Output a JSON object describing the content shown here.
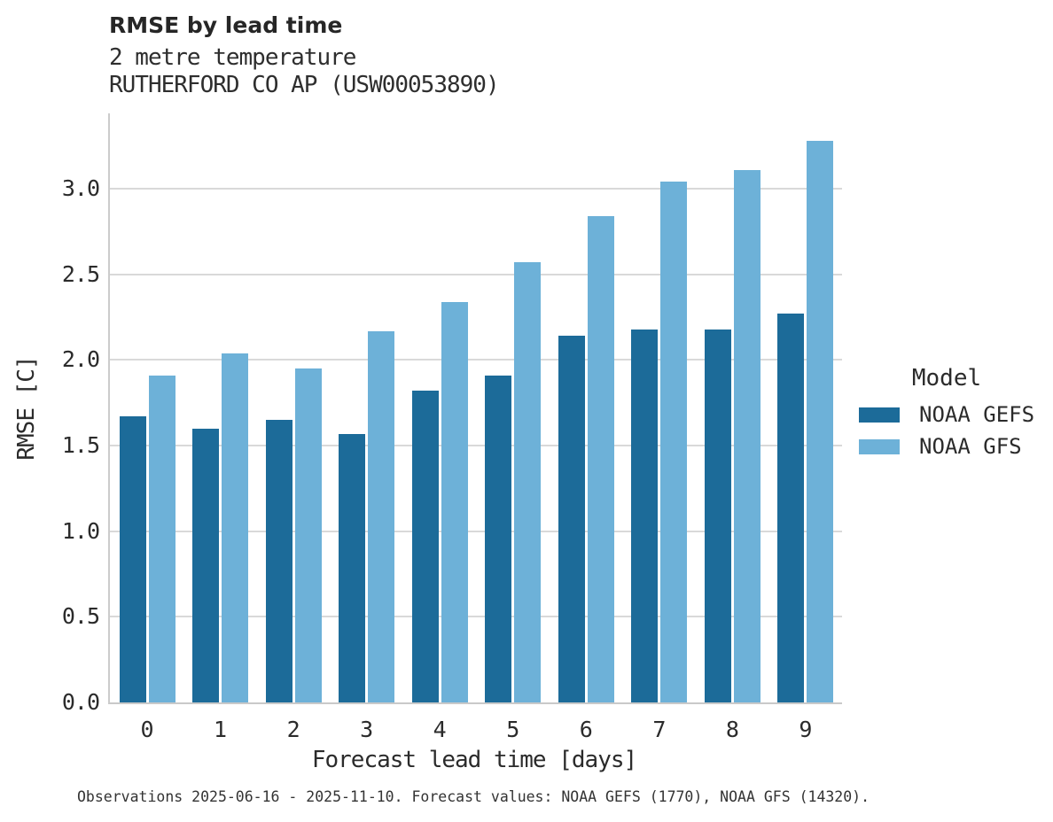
{
  "header": {
    "title": "RMSE by lead time",
    "subtitle1": "2 metre temperature",
    "subtitle2": "RUTHERFORD CO AP (USW00053890)"
  },
  "chart_data": {
    "type": "bar",
    "title": "RMSE by lead time",
    "subtitle": [
      "2 metre temperature",
      "RUTHERFORD CO AP (USW00053890)"
    ],
    "categories": [
      "0",
      "1",
      "2",
      "3",
      "4",
      "5",
      "6",
      "7",
      "8",
      "9"
    ],
    "series": [
      {
        "name": "NOAA GEFS",
        "color": "#1c6b99",
        "values": [
          1.67,
          1.6,
          1.65,
          1.57,
          1.82,
          1.91,
          2.14,
          2.18,
          2.18,
          2.27
        ]
      },
      {
        "name": "NOAA GFS",
        "color": "#6db1d8",
        "values": [
          1.91,
          2.04,
          1.95,
          2.17,
          2.34,
          2.57,
          2.84,
          3.04,
          3.11,
          3.28
        ]
      }
    ],
    "xlabel": "Forecast lead time [days]",
    "ylabel": "RMSE [C]",
    "ylim": [
      0,
      3.44
    ],
    "yticks": [
      0.0,
      0.5,
      1.0,
      1.5,
      2.0,
      2.5,
      3.0
    ],
    "grid": true,
    "legend_title": "Model",
    "legend_position": "right"
  },
  "footer": {
    "note": "Observations 2025-06-16 - 2025-11-10. Forecast values: NOAA GEFS (1770), NOAA GFS (14320)."
  }
}
